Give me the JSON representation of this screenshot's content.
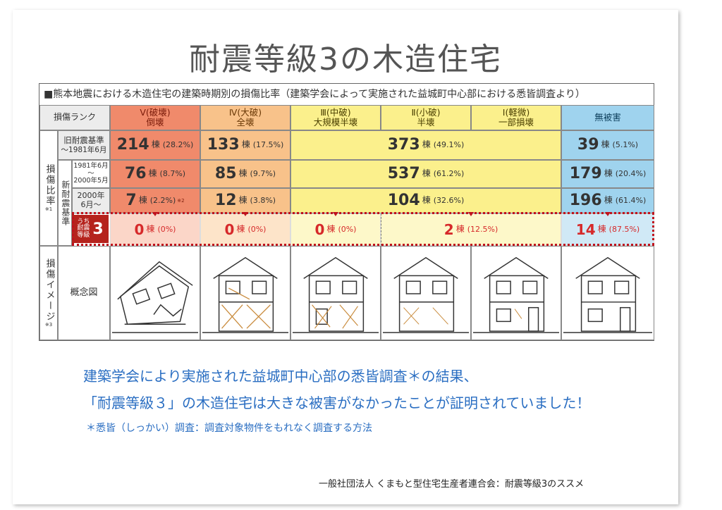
{
  "title": "耐震等級3の木造住宅",
  "table": {
    "heading": "■熊本地震における木造住宅の建築時期別の損傷比率（建築学会によって実施された益城町中心部における悉皆調査より）",
    "rank_label": "損傷ランク",
    "columns": [
      {
        "line1": "Ⅴ(破壊)",
        "line2": "倒壊"
      },
      {
        "line1": "Ⅳ(大破)",
        "line2": "全壊"
      },
      {
        "line1": "Ⅲ(中破)",
        "line2": "大規模半壊"
      },
      {
        "line1": "Ⅱ(小破)",
        "line2": "半壊"
      },
      {
        "line1": "Ⅰ(軽微)",
        "line2": "一部損壊"
      },
      {
        "line1": "無被害",
        "line2": ""
      }
    ],
    "side_ratio": "損傷比率",
    "side_ratio_note": "※1",
    "side_new": "新耐震基準",
    "side_image": "損傷イメージ",
    "side_image_note": "※3",
    "rows": {
      "old": {
        "label1": "旧耐震基準",
        "label2": "～1981年6月",
        "c5": {
          "n": "214",
          "p": "(28.2%)"
        },
        "c4": {
          "n": "133",
          "p": "(17.5%)"
        },
        "mid": {
          "n": "373",
          "p": "(49.1%)"
        },
        "c0": {
          "n": "39",
          "p": "(5.1%)"
        }
      },
      "new1": {
        "label1": "1981年6月",
        "label2": "～",
        "label3": "2000年5月",
        "c5": {
          "n": "76",
          "p": "(8.7%)"
        },
        "c4": {
          "n": "85",
          "p": "(9.7%)"
        },
        "mid": {
          "n": "537",
          "p": "(61.2%)"
        },
        "c0": {
          "n": "179",
          "p": "(20.4%)"
        }
      },
      "new2": {
        "label1": "2000年",
        "label2": "6月～",
        "c5": {
          "n": "7",
          "p": "(2.2%)",
          "note": "※2"
        },
        "c4": {
          "n": "12",
          "p": "(3.8%)"
        },
        "mid": {
          "n": "104",
          "p": "(32.6%)"
        },
        "c0": {
          "n": "196",
          "p": "(61.4%)"
        }
      },
      "grade3": {
        "small1": "うち",
        "small2": "耐震",
        "small3": "等級",
        "big": "3",
        "c5": {
          "n": "0",
          "p": "(0%)"
        },
        "c4": {
          "n": "0",
          "p": "(0%)"
        },
        "c3": {
          "n": "0",
          "p": "(0%)"
        },
        "c21": {
          "n": "2",
          "p": "(12.5%)"
        },
        "c0": {
          "n": "14",
          "p": "(87.5%)"
        }
      }
    },
    "unit": "棟",
    "concept_label": "概念図"
  },
  "message": {
    "line1": "建築学会により実施された益城町中心部の悉皆調査＊の結果、",
    "line2": "「耐震等級３」の木造住宅は大きな被害がなかったことが証明されていました！",
    "note": "＊悉皆（しっかい）調査：調査対象物件をもれなく調査する方法"
  },
  "footer": "一般社団法人 くまもと型住宅生産者連合会：耐震等級3のススメ",
  "colors": {
    "red": "#d6292a",
    "blue_text": "#2a6ec2",
    "rank5": "#f08a6b",
    "rank4": "#f8c28a",
    "rank_mid": "#fbf08c",
    "none": "#9fd3ee"
  }
}
